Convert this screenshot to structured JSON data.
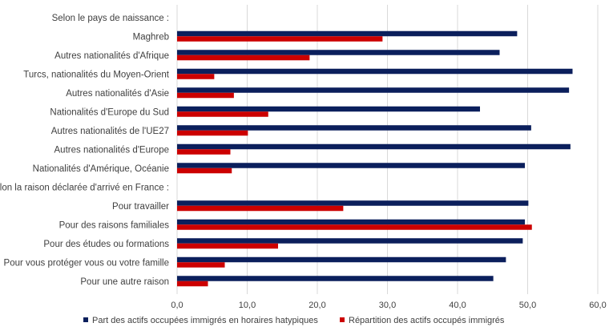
{
  "chart_data": {
    "type": "bar",
    "orientation": "horizontal",
    "title": "",
    "xlabel": "",
    "ylabel": "",
    "xlim": [
      0,
      60
    ],
    "xticks": [
      "0,0",
      "10,0",
      "20,0",
      "30,0",
      "40,0",
      "50,0",
      "60,0"
    ],
    "grid": true,
    "legend_position": "bottom",
    "colors": {
      "series1": "#0b1f5c",
      "series2": "#cc0000",
      "grid": "#d9d9d9"
    },
    "categories": [
      "Selon le pays de naissance :",
      "Maghreb",
      "Autres nationalités d'Afrique",
      "Turcs, nationalités du Moyen-Orient",
      "Autres nationalités d'Asie",
      "Nationalités d'Europe du Sud",
      "Autres nationalités de l'UE27",
      "Autres nationalités d'Europe",
      "Nationalités d'Amérique, Océanie",
      "Selon la raison déclarée d'arrivé en France :",
      "Pour travailler",
      "Pour des raisons familiales",
      "Pour des études ou formations",
      "Pour vous protéger vous ou votre famille",
      "Pour une autre raison"
    ],
    "series": [
      {
        "name": "Part des actifs occupées immigrés en horaires hatypiques",
        "values": [
          null,
          48.5,
          46.0,
          56.4,
          55.9,
          43.2,
          50.5,
          56.1,
          49.6,
          null,
          50.1,
          49.6,
          49.3,
          46.9,
          45.1
        ]
      },
      {
        "name": "Répartition des actifs occupés immigrés",
        "values": [
          null,
          29.3,
          18.9,
          5.3,
          8.1,
          13.0,
          10.1,
          7.6,
          7.8,
          null,
          23.7,
          50.6,
          14.4,
          6.8,
          4.4
        ]
      }
    ]
  }
}
